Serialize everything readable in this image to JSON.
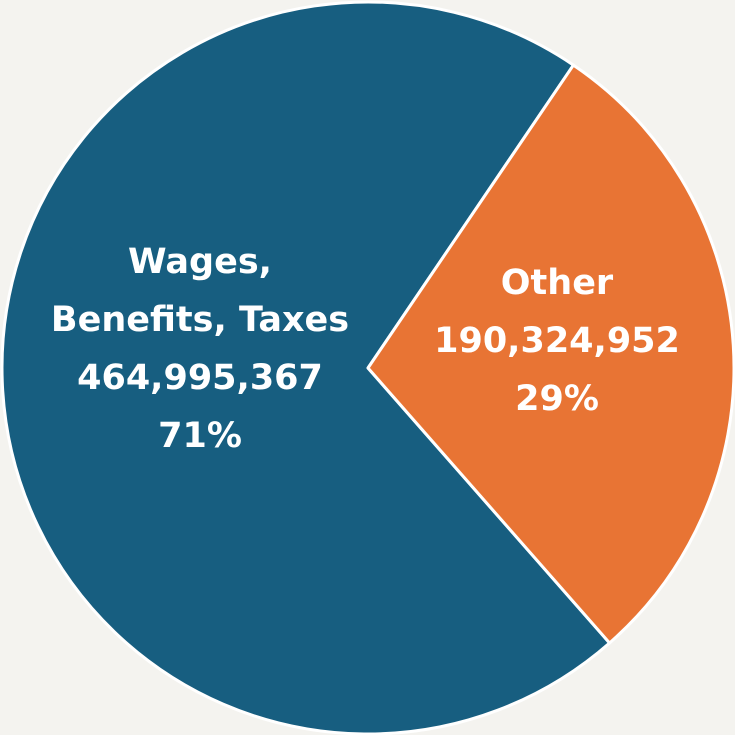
{
  "chart_data": {
    "type": "pie",
    "categories": [
      "Wages,\nBenefits, Taxes",
      "Other"
    ],
    "values": [
      464995367,
      190324952
    ],
    "value_labels": [
      "464,995,367",
      "190,324,952"
    ],
    "percents": [
      71,
      29
    ],
    "percent_labels": [
      "71%",
      "29%"
    ],
    "colors": [
      "#175e80",
      "#e87434"
    ]
  }
}
